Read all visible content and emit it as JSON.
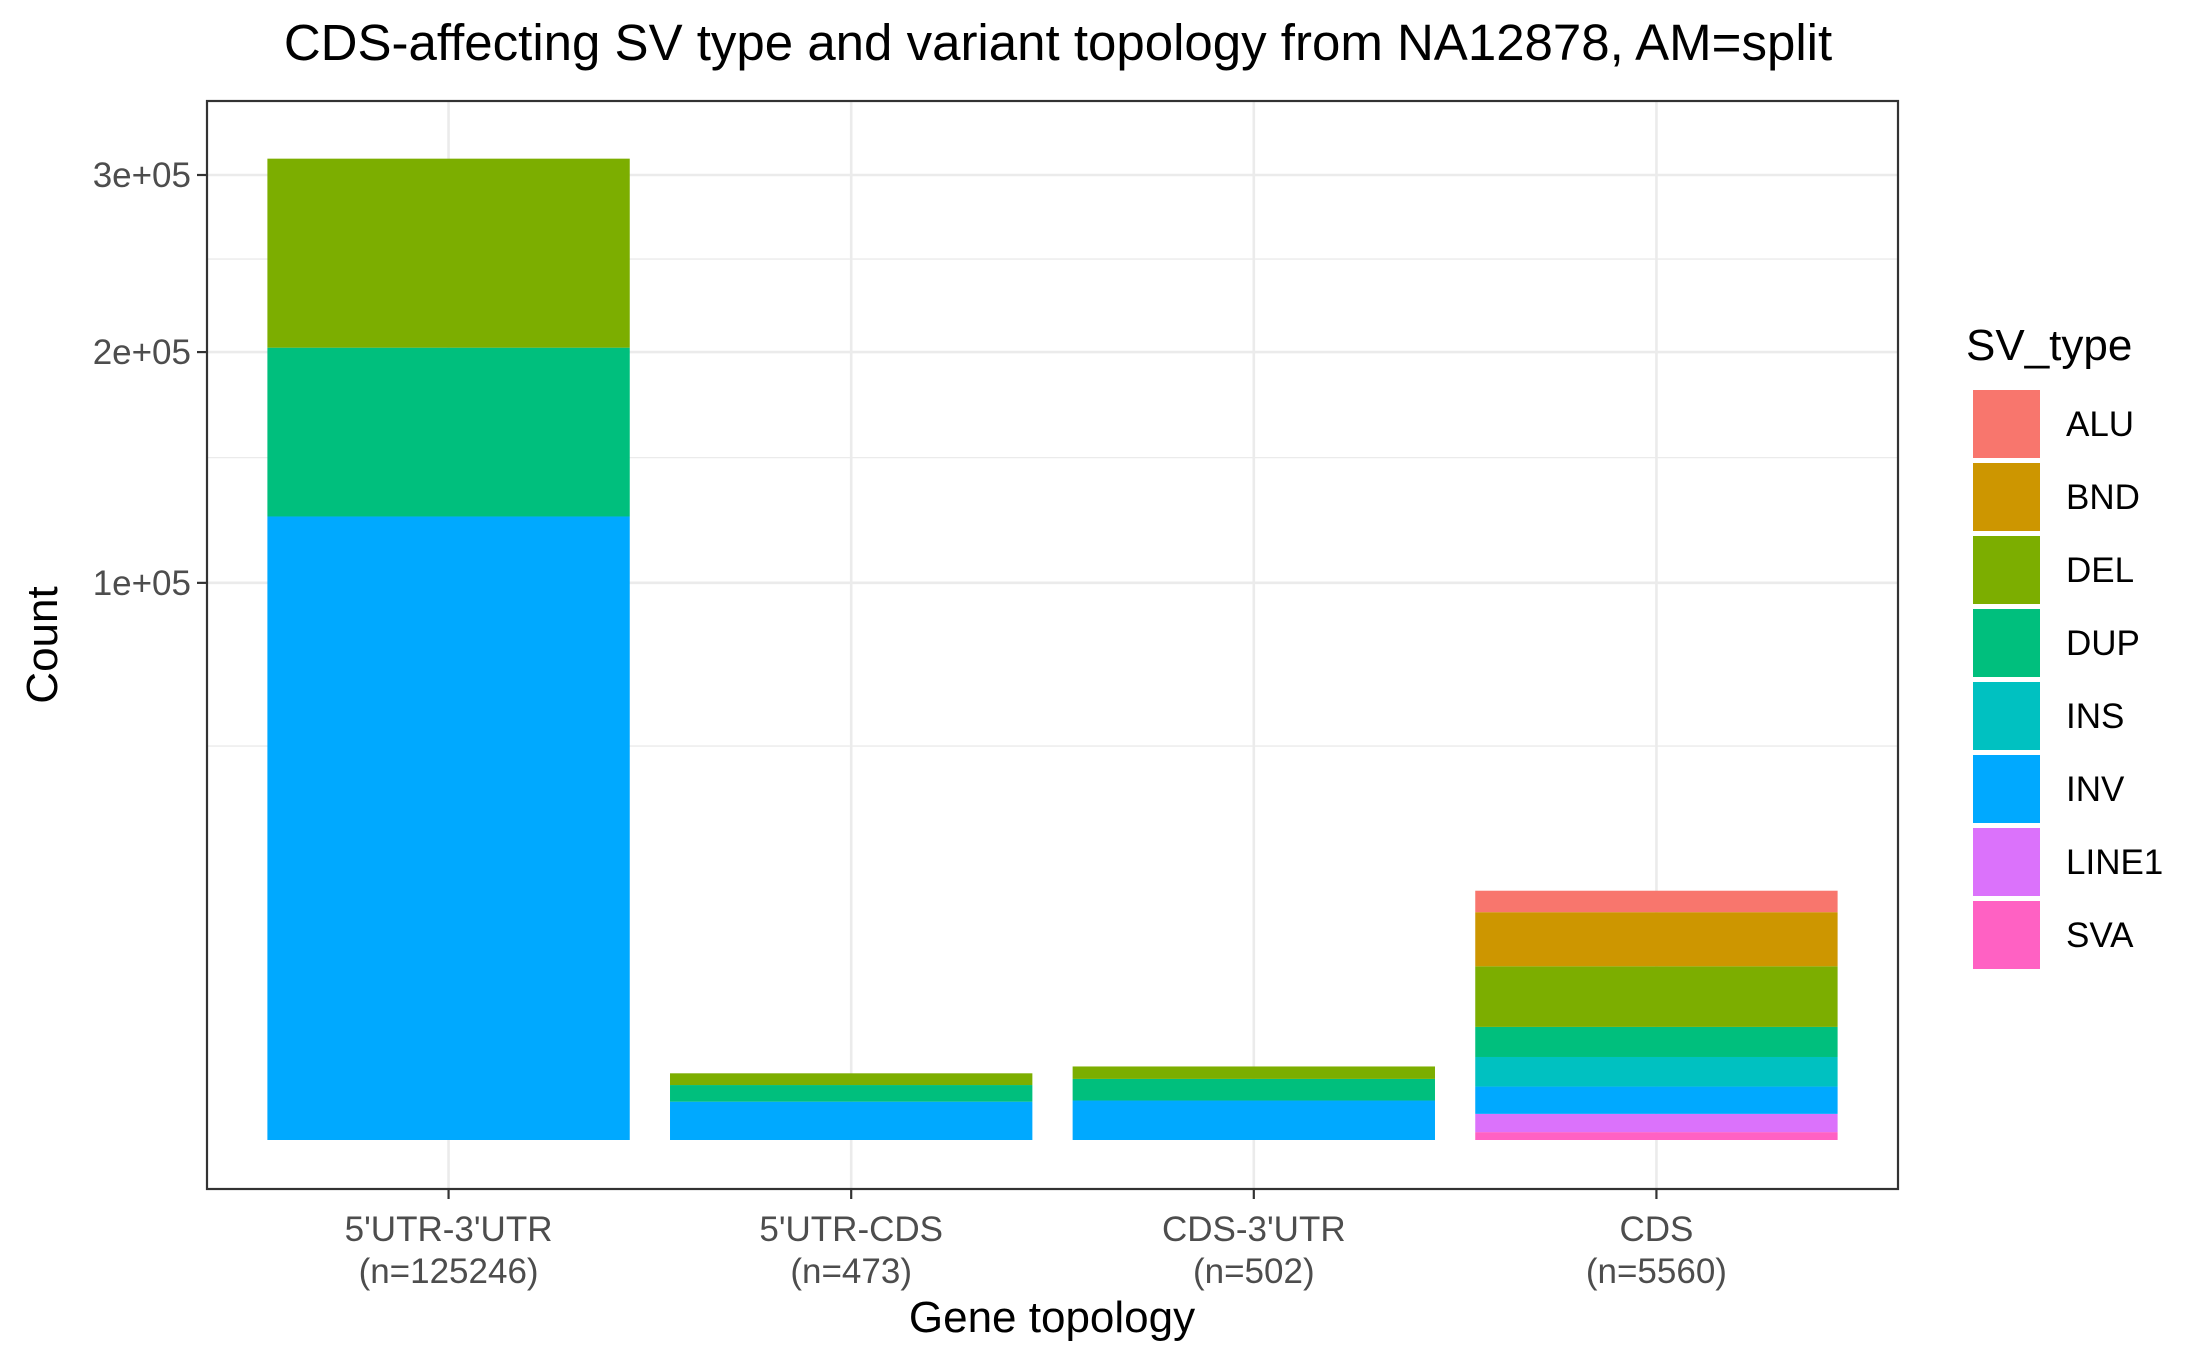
{
  "chart_data": {
    "type": "bar",
    "stacked": true,
    "title": "CDS-affecting SV type and variant topology from NA12878, AM=split",
    "xlabel": "Gene topology",
    "ylabel": "Count",
    "y_scale": "sqrt",
    "ylim": [
      0,
      310000
    ],
    "y_ticks": [
      100000,
      200000,
      300000
    ],
    "y_tick_labels": [
      "1e+05",
      "2e+05",
      "3e+05"
    ],
    "grid": true,
    "legend": {
      "title": "SV_type",
      "position": "right"
    },
    "categories": [
      {
        "name": "5'UTR-3'UTR",
        "n_label": "(n=125246)"
      },
      {
        "name": "5'UTR-CDS",
        "n_label": "(n=473)"
      },
      {
        "name": "CDS-3'UTR",
        "n_label": "(n=502)"
      },
      {
        "name": "CDS",
        "n_label": "(n=5560)"
      }
    ],
    "series": [
      {
        "name": "SVA",
        "color": "#FF61C3",
        "values": [
          0,
          0,
          0,
          20
        ]
      },
      {
        "name": "LINE1",
        "color": "#DB72FB",
        "values": [
          0,
          0,
          0,
          200
        ]
      },
      {
        "name": "INV",
        "color": "#00A9FF",
        "values": [
          125246,
          473,
          502,
          700
        ]
      },
      {
        "name": "INS",
        "color": "#00C1C1",
        "values": [
          0,
          0,
          0,
          1300
        ]
      },
      {
        "name": "DUP",
        "color": "#00BF7D",
        "values": [
          77000,
          500,
          700,
          1900
        ]
      },
      {
        "name": "DEL",
        "color": "#7CAE00",
        "values": [
          108000,
          460,
          540,
          5600
        ]
      },
      {
        "name": "BND",
        "color": "#CD9600",
        "values": [
          0,
          0,
          0,
          7000
        ]
      },
      {
        "name": "ALU",
        "color": "#F8766D",
        "values": [
          0,
          0,
          0,
          3300
        ]
      }
    ],
    "legend_order": [
      "ALU",
      "BND",
      "DEL",
      "DUP",
      "INS",
      "INV",
      "LINE1",
      "SVA"
    ]
  }
}
